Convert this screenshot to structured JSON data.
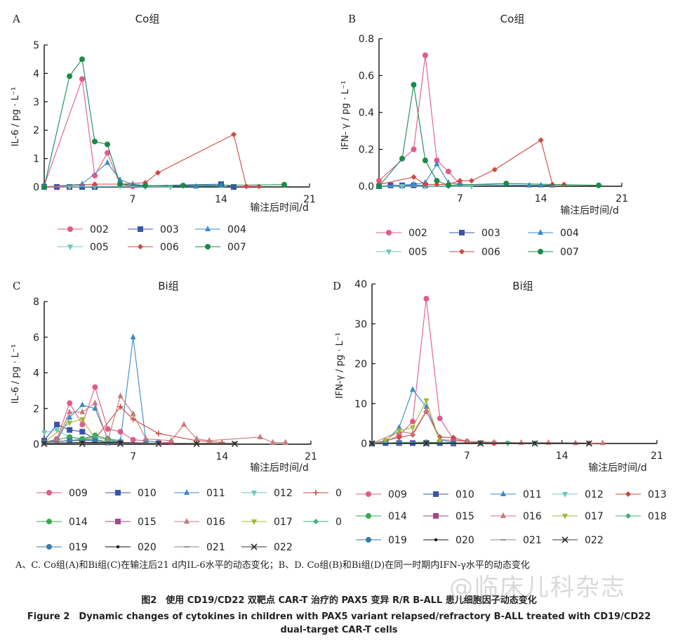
{
  "caption": {
    "cn": "A、C. Co组(A)和Bi组(C)在输注后21 d内IL-6水平的动态变化；B、D. Co组(B)和Bi组(D)在同一时期内IFN-γ水平的动态变化",
    "title_cn": "图2　使用 CD19/CD22 双靶点 CAR-T 治疗的 PAX5 变异 R/R B-ALL 患儿细胞因子动态变化",
    "title_en": "Figure 2　Dynamic changes of cytokines in children with PAX5 variant relapsed/refractory B-ALL treated with CD19/CD22",
    "title_en2": "dual-target CAR-T cells"
  },
  "watermark": "@临床儿科杂志",
  "chart_data": [
    {
      "panel": "A",
      "type": "line",
      "title": "Co组",
      "ylabel": "IL-6 / pg · L⁻¹",
      "xlabel": "输注后时间/d",
      "xlim": [
        0,
        21
      ],
      "ylim": [
        0,
        5
      ],
      "xticks": [
        7,
        14,
        21
      ],
      "yticks": [
        0,
        1,
        2,
        3,
        4,
        5
      ],
      "legend": "bottom",
      "series": [
        {
          "name": "002",
          "color": "#e05a8a",
          "marker": "circle",
          "x": [
            0,
            3,
            4,
            5,
            6,
            7
          ],
          "y": [
            0.05,
            3.8,
            0.4,
            1.2,
            0.1,
            0.02
          ]
        },
        {
          "name": "003",
          "color": "#3a55a8",
          "marker": "square",
          "x": [
            0,
            1,
            2,
            3,
            4,
            14,
            15
          ],
          "y": [
            0,
            0,
            0,
            0,
            0,
            0.1,
            0
          ]
        },
        {
          "name": "004",
          "color": "#3a8ac8",
          "marker": "triangle",
          "x": [
            0,
            3,
            5,
            6,
            7,
            8,
            12,
            14
          ],
          "y": [
            0,
            0.1,
            0.85,
            0.25,
            0.1,
            0.05,
            0.02,
            0.05
          ]
        },
        {
          "name": "005",
          "color": "#6cc8c0",
          "marker": "tri-down",
          "x": [
            0,
            2,
            4,
            6,
            8,
            10
          ],
          "y": [
            0,
            0,
            0.02,
            0.02,
            0,
            0
          ]
        },
        {
          "name": "006",
          "color": "#d04840",
          "marker": "diamond",
          "x": [
            0,
            4,
            6,
            8,
            9,
            15,
            16,
            17
          ],
          "y": [
            0,
            0.1,
            0.1,
            0.15,
            0.5,
            1.85,
            0.02,
            0.02
          ]
        },
        {
          "name": "007",
          "color": "#1a8a4a",
          "marker": "circle",
          "x": [
            0,
            2,
            3,
            4,
            5,
            6,
            8,
            11,
            19
          ],
          "y": [
            0,
            3.9,
            4.5,
            1.6,
            1.5,
            0.1,
            0.05,
            0.05,
            0.08
          ]
        }
      ]
    },
    {
      "panel": "B",
      "type": "line",
      "title": "Co组",
      "ylabel": "IFN- γ / pg · L⁻¹",
      "xlabel": "输注后时间/d",
      "xlim": [
        0,
        21
      ],
      "ylim": [
        0,
        0.8
      ],
      "xticks": [
        7,
        14,
        21
      ],
      "yticks": [
        0,
        0.2,
        0.4,
        0.6,
        0.8
      ],
      "ytick_labels": [
        "0.0",
        "0.2",
        "0.4",
        "0.6",
        "0.8"
      ],
      "legend": "bottom",
      "series": [
        {
          "name": "002",
          "color": "#e05a8a",
          "marker": "circle",
          "x": [
            0,
            3,
            4,
            5,
            6,
            7
          ],
          "y": [
            0.03,
            0.2,
            0.71,
            0.14,
            0.08,
            0.01
          ]
        },
        {
          "name": "003",
          "color": "#3a55a8",
          "marker": "square",
          "x": [
            0,
            1,
            2,
            3,
            4
          ],
          "y": [
            0,
            0.005,
            0.005,
            0.005,
            0.005
          ]
        },
        {
          "name": "004",
          "color": "#3a8ac8",
          "marker": "triangle",
          "x": [
            0,
            3,
            4,
            5,
            6,
            7,
            13,
            14,
            15
          ],
          "y": [
            0,
            0.01,
            0.02,
            0.12,
            0.02,
            0.01,
            0.005,
            0.005,
            0.005
          ]
        },
        {
          "name": "005",
          "color": "#6cc8c0",
          "marker": "tri-down",
          "x": [
            0,
            2,
            4,
            6,
            8
          ],
          "y": [
            0,
            0,
            0,
            0,
            0
          ]
        },
        {
          "name": "006",
          "color": "#d04840",
          "marker": "diamond",
          "x": [
            0,
            3,
            4,
            5,
            6,
            7,
            8,
            10,
            14,
            15,
            16
          ],
          "y": [
            0.01,
            0.05,
            0.01,
            0.01,
            0.01,
            0.03,
            0.03,
            0.09,
            0.25,
            0.01,
            0.01
          ]
        },
        {
          "name": "007",
          "color": "#1a8a4a",
          "marker": "circle",
          "x": [
            0,
            2,
            3,
            4,
            5,
            6,
            11,
            19
          ],
          "y": [
            0,
            0.15,
            0.55,
            0.14,
            0.03,
            0.005,
            0.015,
            0.005
          ]
        }
      ]
    },
    {
      "panel": "C",
      "type": "line",
      "title": "Bi组",
      "ylabel": "IL-6 / pg · L⁻¹",
      "xlabel": "输注后时间/d",
      "xlim": [
        0,
        21
      ],
      "ylim": [
        0,
        8
      ],
      "xticks": [
        7,
        14,
        21
      ],
      "yticks": [
        0,
        2,
        4,
        6,
        8
      ],
      "legend": "bottom",
      "series": [
        {
          "name": "009",
          "color": "#e05a8a",
          "marker": "circle",
          "x": [
            0,
            1,
            2,
            3,
            4,
            5,
            6,
            7,
            8,
            9,
            10
          ],
          "y": [
            0.1,
            0.3,
            2.3,
            1.1,
            3.2,
            0.85,
            0.7,
            0.25,
            0.2,
            0.1,
            0.1
          ]
        },
        {
          "name": "010",
          "color": "#3a55a8",
          "marker": "square",
          "x": [
            0,
            1,
            2,
            3,
            4,
            5
          ],
          "y": [
            0.2,
            1.1,
            0.8,
            0.7,
            0.3,
            0.1
          ]
        },
        {
          "name": "011",
          "color": "#3a8ac8",
          "marker": "triangle",
          "x": [
            0,
            1,
            2,
            3,
            4,
            5,
            6,
            7,
            8,
            9
          ],
          "y": [
            0.1,
            0.2,
            1.5,
            2.2,
            2.0,
            0.3,
            0.2,
            6.0,
            0.2,
            0.1
          ]
        },
        {
          "name": "012",
          "color": "#6cc8c0",
          "marker": "tri-down",
          "x": [
            0,
            1,
            2,
            3,
            4,
            5
          ],
          "y": [
            0.65,
            0.8,
            0.4,
            0.3,
            0.2,
            0.1
          ]
        },
        {
          "name": "0",
          "color": "#c84840",
          "marker": "plus",
          "x": [
            0,
            2,
            4,
            6,
            7,
            9,
            12,
            14
          ],
          "y": [
            0.1,
            0.2,
            0.3,
            2.1,
            1.4,
            0.6,
            0.2,
            0.1
          ]
        },
        {
          "name": "014",
          "color": "#3aa850",
          "marker": "circle",
          "x": [
            0,
            2,
            3,
            4,
            5,
            6
          ],
          "y": [
            0.1,
            0.4,
            0.3,
            0.5,
            0.3,
            0.1
          ]
        },
        {
          "name": "015",
          "color": "#a04a88",
          "marker": "square",
          "x": [
            0,
            2,
            4,
            6
          ],
          "y": [
            0.1,
            0.2,
            0.2,
            0.1
          ]
        },
        {
          "name": "016",
          "color": "#c87878",
          "marker": "triangle",
          "x": [
            0,
            1,
            2,
            3,
            4,
            5,
            6,
            7,
            8,
            10,
            11,
            12,
            13,
            17,
            18,
            19
          ],
          "y": [
            0.1,
            0.2,
            1.8,
            1.8,
            2.3,
            0.2,
            2.7,
            1.7,
            0.3,
            0.2,
            1.1,
            0.3,
            0.2,
            0.4,
            0.1,
            0.1
          ]
        },
        {
          "name": "017",
          "color": "#a0b838",
          "marker": "tri-down",
          "x": [
            0,
            2,
            3,
            4,
            5
          ],
          "y": [
            0.1,
            1.2,
            1.4,
            0.3,
            0.1
          ]
        },
        {
          "name": "0",
          "color": "#40b080",
          "marker": "diamond",
          "x": [
            0,
            2,
            4,
            6
          ],
          "y": [
            0.1,
            0.2,
            0.4,
            0.1
          ]
        },
        {
          "name": "019",
          "color": "#3a7aa8",
          "marker": "circle",
          "x": [
            0,
            2,
            4,
            6
          ],
          "y": [
            0.1,
            0.2,
            0.2,
            0.1
          ]
        },
        {
          "name": "020",
          "color": "#111111",
          "marker": "dot",
          "x": [
            0,
            3,
            6,
            9,
            12,
            15
          ],
          "y": [
            0.05,
            0.1,
            0.1,
            0.05,
            0.05,
            0.05
          ]
        },
        {
          "name": "021",
          "color": "#888888",
          "marker": "dash",
          "x": [
            0,
            3,
            6,
            9,
            12,
            15
          ],
          "y": [
            0.05,
            0.05,
            0.05,
            0.05,
            0.05,
            0.05
          ]
        },
        {
          "name": "022",
          "color": "#333333",
          "marker": "x",
          "x": [
            0,
            3,
            6,
            9,
            12,
            15
          ],
          "y": [
            0.02,
            0.02,
            0.02,
            0.02,
            0.02,
            0.02
          ]
        }
      ]
    },
    {
      "panel": "D",
      "type": "line",
      "title": "Bi组",
      "ylabel": "IFN-γ / pg · L⁻¹",
      "xlabel": "输注后时间/d",
      "xlim": [
        0,
        21
      ],
      "ylim": [
        0,
        40
      ],
      "xticks": [
        7,
        14,
        21
      ],
      "yticks": [
        0,
        10,
        20,
        30,
        40
      ],
      "legend": "bottom",
      "series": [
        {
          "name": "009",
          "color": "#e05a8a",
          "marker": "circle",
          "x": [
            0,
            1,
            2,
            3,
            4,
            5,
            6,
            7,
            8,
            9
          ],
          "y": [
            0,
            0.5,
            2,
            5.5,
            36.3,
            6.3,
            1,
            0.5,
            0.2,
            0.1
          ]
        },
        {
          "name": "010",
          "color": "#3a55a8",
          "marker": "square",
          "x": [
            0,
            1,
            2,
            3,
            4,
            5,
            6
          ],
          "y": [
            0,
            0.1,
            0.1,
            0.1,
            0.1,
            0.1,
            0
          ]
        },
        {
          "name": "011",
          "color": "#3a8ac8",
          "marker": "triangle",
          "x": [
            0,
            1,
            2,
            3,
            4,
            5,
            6
          ],
          "y": [
            0,
            0.5,
            4,
            13.5,
            9.2,
            1,
            0.2
          ]
        },
        {
          "name": "012",
          "color": "#6cc8c0",
          "marker": "tri-down",
          "x": [
            0,
            2,
            4,
            6,
            8,
            10,
            12
          ],
          "y": [
            0,
            0.3,
            0.3,
            0.2,
            0.1,
            0.1,
            0.1
          ]
        },
        {
          "name": "013",
          "color": "#c84840",
          "marker": "diamond",
          "x": [
            0,
            2,
            3,
            4,
            5,
            6,
            7,
            8,
            9
          ],
          "y": [
            0,
            1.5,
            2.2,
            8,
            1.6,
            1.5,
            0.5,
            0.2,
            0.1
          ]
        },
        {
          "name": "014",
          "color": "#3aa850",
          "marker": "circle",
          "x": [
            0,
            2,
            4,
            6
          ],
          "y": [
            0,
            0.2,
            0.3,
            0.1
          ]
        },
        {
          "name": "015",
          "color": "#a04a88",
          "marker": "square",
          "x": [
            0,
            2,
            4,
            6
          ],
          "y": [
            0,
            0.1,
            0.1,
            0.1
          ]
        },
        {
          "name": "016",
          "color": "#c87878",
          "marker": "triangle",
          "x": [
            0,
            2,
            3,
            4,
            5,
            7,
            9,
            11,
            13,
            15,
            16,
            17
          ],
          "y": [
            0,
            3,
            2.5,
            8.2,
            1,
            0.5,
            0.3,
            0.2,
            0.2,
            0.1,
            0.1,
            0.1
          ]
        },
        {
          "name": "017",
          "color": "#a0b838",
          "marker": "tri-down",
          "x": [
            0,
            1,
            2,
            3,
            4,
            5
          ],
          "y": [
            0,
            0.8,
            3.2,
            4,
            10.8,
            0.5
          ]
        },
        {
          "name": "018",
          "color": "#40b080",
          "marker": "diamond",
          "x": [
            0,
            2,
            4,
            6,
            8,
            10,
            12
          ],
          "y": [
            0,
            0.2,
            0.2,
            0.1,
            0.1,
            0.1,
            0.1
          ]
        },
        {
          "name": "019",
          "color": "#3a7aa8",
          "marker": "circle",
          "x": [
            0,
            2,
            4,
            6
          ],
          "y": [
            0,
            0.1,
            0.1,
            0.1
          ]
        },
        {
          "name": "020",
          "color": "#111111",
          "marker": "dot",
          "x": [
            0,
            4,
            8,
            12,
            16
          ],
          "y": [
            0,
            0.1,
            0.1,
            0.1,
            0.1
          ]
        },
        {
          "name": "021",
          "color": "#888888",
          "marker": "dash",
          "x": [
            0,
            4,
            8,
            12,
            16
          ],
          "y": [
            0,
            0,
            0,
            0,
            0
          ]
        },
        {
          "name": "022",
          "color": "#333333",
          "marker": "x",
          "x": [
            0,
            4,
            8,
            12,
            16
          ],
          "y": [
            0,
            0,
            0,
            0,
            0
          ]
        }
      ]
    }
  ]
}
